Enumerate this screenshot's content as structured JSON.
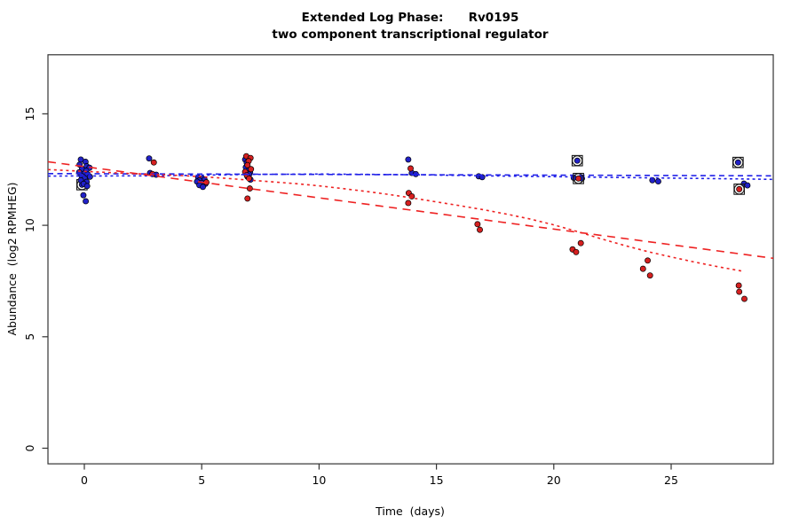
{
  "title": "Extended Log Phase:      Rv0195",
  "subtitle": "two component transcriptional regulator",
  "chart_data": {
    "type": "scatter",
    "xlabel": "Time  (days)",
    "ylabel": "Abundance  (log2 RPMHEG)",
    "xlim": [
      -1.55,
      29.35
    ],
    "ylim": [
      -0.7,
      17.65
    ],
    "xticks": [
      0,
      5,
      10,
      15,
      20,
      25
    ],
    "yticks": [
      0,
      5,
      10,
      15
    ],
    "grid": false,
    "legend": "none",
    "colors": {
      "blue_point": "#2121c8",
      "red_point": "#d62020",
      "blue_line": "#2020e8",
      "red_line": "#ee2222",
      "point_edge": "#000000",
      "flag_marker": "#1a1a1a",
      "axis": "#333333"
    },
    "series": [
      {
        "name": "blue-replicates",
        "color_key": "blue_point",
        "points": [
          [
            -0.15,
            12.95
          ],
          [
            0.05,
            12.85
          ],
          [
            -0.2,
            12.72
          ],
          [
            0.1,
            12.65
          ],
          [
            0.22,
            12.58
          ],
          [
            -0.1,
            12.52
          ],
          [
            0.08,
            12.45
          ],
          [
            -0.22,
            12.38
          ],
          [
            0.0,
            12.32
          ],
          [
            0.15,
            12.28
          ],
          [
            -0.12,
            12.22
          ],
          [
            0.24,
            12.18
          ],
          [
            0.02,
            12.1
          ],
          [
            -0.15,
            12.02
          ],
          [
            0.1,
            11.95
          ],
          [
            -0.03,
            11.86
          ],
          [
            0.12,
            11.76
          ],
          [
            -0.04,
            11.35
          ],
          [
            0.06,
            11.08
          ],
          [
            2.76,
            13.0
          ],
          [
            2.8,
            12.35
          ],
          [
            3.06,
            12.27
          ],
          [
            4.85,
            12.14
          ],
          [
            5.02,
            12.1
          ],
          [
            5.12,
            12.05
          ],
          [
            4.9,
            12.02
          ],
          [
            4.8,
            11.96
          ],
          [
            5.0,
            11.9
          ],
          [
            5.16,
            11.86
          ],
          [
            4.9,
            11.8
          ],
          [
            5.05,
            11.72
          ],
          [
            6.85,
            12.95
          ],
          [
            6.92,
            12.8
          ],
          [
            6.88,
            12.6
          ],
          [
            6.98,
            12.45
          ],
          [
            7.06,
            12.38
          ],
          [
            7.02,
            12.28
          ],
          [
            6.95,
            12.18
          ],
          [
            7.08,
            12.05
          ],
          [
            13.8,
            12.95
          ],
          [
            13.95,
            12.35
          ],
          [
            14.12,
            12.3
          ],
          [
            16.8,
            12.2
          ],
          [
            16.95,
            12.16
          ],
          [
            20.85,
            12.13
          ],
          [
            21.2,
            12.1
          ],
          [
            24.2,
            12.02
          ],
          [
            24.45,
            11.97
          ],
          [
            28.1,
            11.87
          ],
          [
            28.25,
            11.79
          ]
        ]
      },
      {
        "name": "red-replicates",
        "color_key": "red_point",
        "points": [
          [
            2.96,
            12.82
          ],
          [
            2.9,
            12.3
          ],
          [
            5.2,
            11.93
          ],
          [
            6.9,
            13.1
          ],
          [
            7.08,
            13.02
          ],
          [
            7.0,
            12.88
          ],
          [
            6.95,
            12.7
          ],
          [
            7.1,
            12.52
          ],
          [
            6.85,
            12.4
          ],
          [
            6.92,
            12.25
          ],
          [
            7.02,
            12.1
          ],
          [
            7.05,
            11.65
          ],
          [
            6.95,
            11.2
          ],
          [
            13.9,
            12.55
          ],
          [
            13.82,
            11.45
          ],
          [
            13.95,
            11.3
          ],
          [
            13.8,
            11.0
          ],
          [
            16.75,
            10.05
          ],
          [
            16.85,
            9.8
          ],
          [
            21.15,
            9.2
          ],
          [
            20.8,
            8.92
          ],
          [
            20.95,
            8.8
          ],
          [
            24.0,
            8.42
          ],
          [
            23.8,
            8.05
          ],
          [
            24.1,
            7.75
          ],
          [
            27.88,
            7.3
          ],
          [
            27.9,
            7.02
          ],
          [
            28.12,
            6.7
          ]
        ]
      }
    ],
    "flagged_points": [
      {
        "x": -0.1,
        "y": 11.82,
        "series": "blue",
        "layer": "back"
      },
      {
        "x": 21.0,
        "y": 12.9,
        "series": "blue",
        "layer": "front"
      },
      {
        "x": 21.05,
        "y": 12.1,
        "series": "red",
        "layer": "front"
      },
      {
        "x": 27.85,
        "y": 12.82,
        "series": "blue",
        "layer": "front"
      },
      {
        "x": 27.9,
        "y": 11.62,
        "series": "red",
        "layer": "front"
      }
    ],
    "lines": [
      {
        "name": "blue-linear-fit",
        "series": "blue",
        "style": "longdash",
        "points": [
          [
            -1.55,
            12.32
          ],
          [
            29.35,
            12.22
          ]
        ]
      },
      {
        "name": "blue-smooth-fit",
        "series": "blue",
        "style": "dotted",
        "points": [
          [
            -1.55,
            12.21
          ],
          [
            3,
            12.22
          ],
          [
            7,
            12.28
          ],
          [
            10,
            12.3
          ],
          [
            14,
            12.27
          ],
          [
            17,
            12.22
          ],
          [
            21,
            12.17
          ],
          [
            24,
            12.13
          ],
          [
            28,
            12.08
          ],
          [
            29.35,
            12.06
          ]
        ]
      },
      {
        "name": "red-linear-fit",
        "series": "red",
        "style": "longdash",
        "points": [
          [
            -1.55,
            12.85
          ],
          [
            29.35,
            8.52
          ]
        ]
      },
      {
        "name": "red-smooth-fit",
        "series": "red",
        "style": "dotted",
        "points": [
          [
            -1.55,
            12.5
          ],
          [
            0,
            12.42
          ],
          [
            2,
            12.32
          ],
          [
            4,
            12.24
          ],
          [
            5,
            12.18
          ],
          [
            6,
            12.11
          ],
          [
            7,
            12.03
          ],
          [
            8,
            11.95
          ],
          [
            9,
            11.87
          ],
          [
            10,
            11.77
          ],
          [
            11,
            11.65
          ],
          [
            12,
            11.52
          ],
          [
            13,
            11.38
          ],
          [
            14,
            11.22
          ],
          [
            15,
            11.05
          ],
          [
            16,
            10.88
          ],
          [
            17,
            10.7
          ],
          [
            18,
            10.5
          ],
          [
            19,
            10.28
          ],
          [
            20,
            10.02
          ],
          [
            21,
            9.72
          ],
          [
            22,
            9.4
          ],
          [
            23,
            9.1
          ],
          [
            24,
            8.82
          ],
          [
            25,
            8.58
          ],
          [
            26,
            8.35
          ],
          [
            27,
            8.14
          ],
          [
            28,
            7.95
          ]
        ]
      }
    ]
  }
}
